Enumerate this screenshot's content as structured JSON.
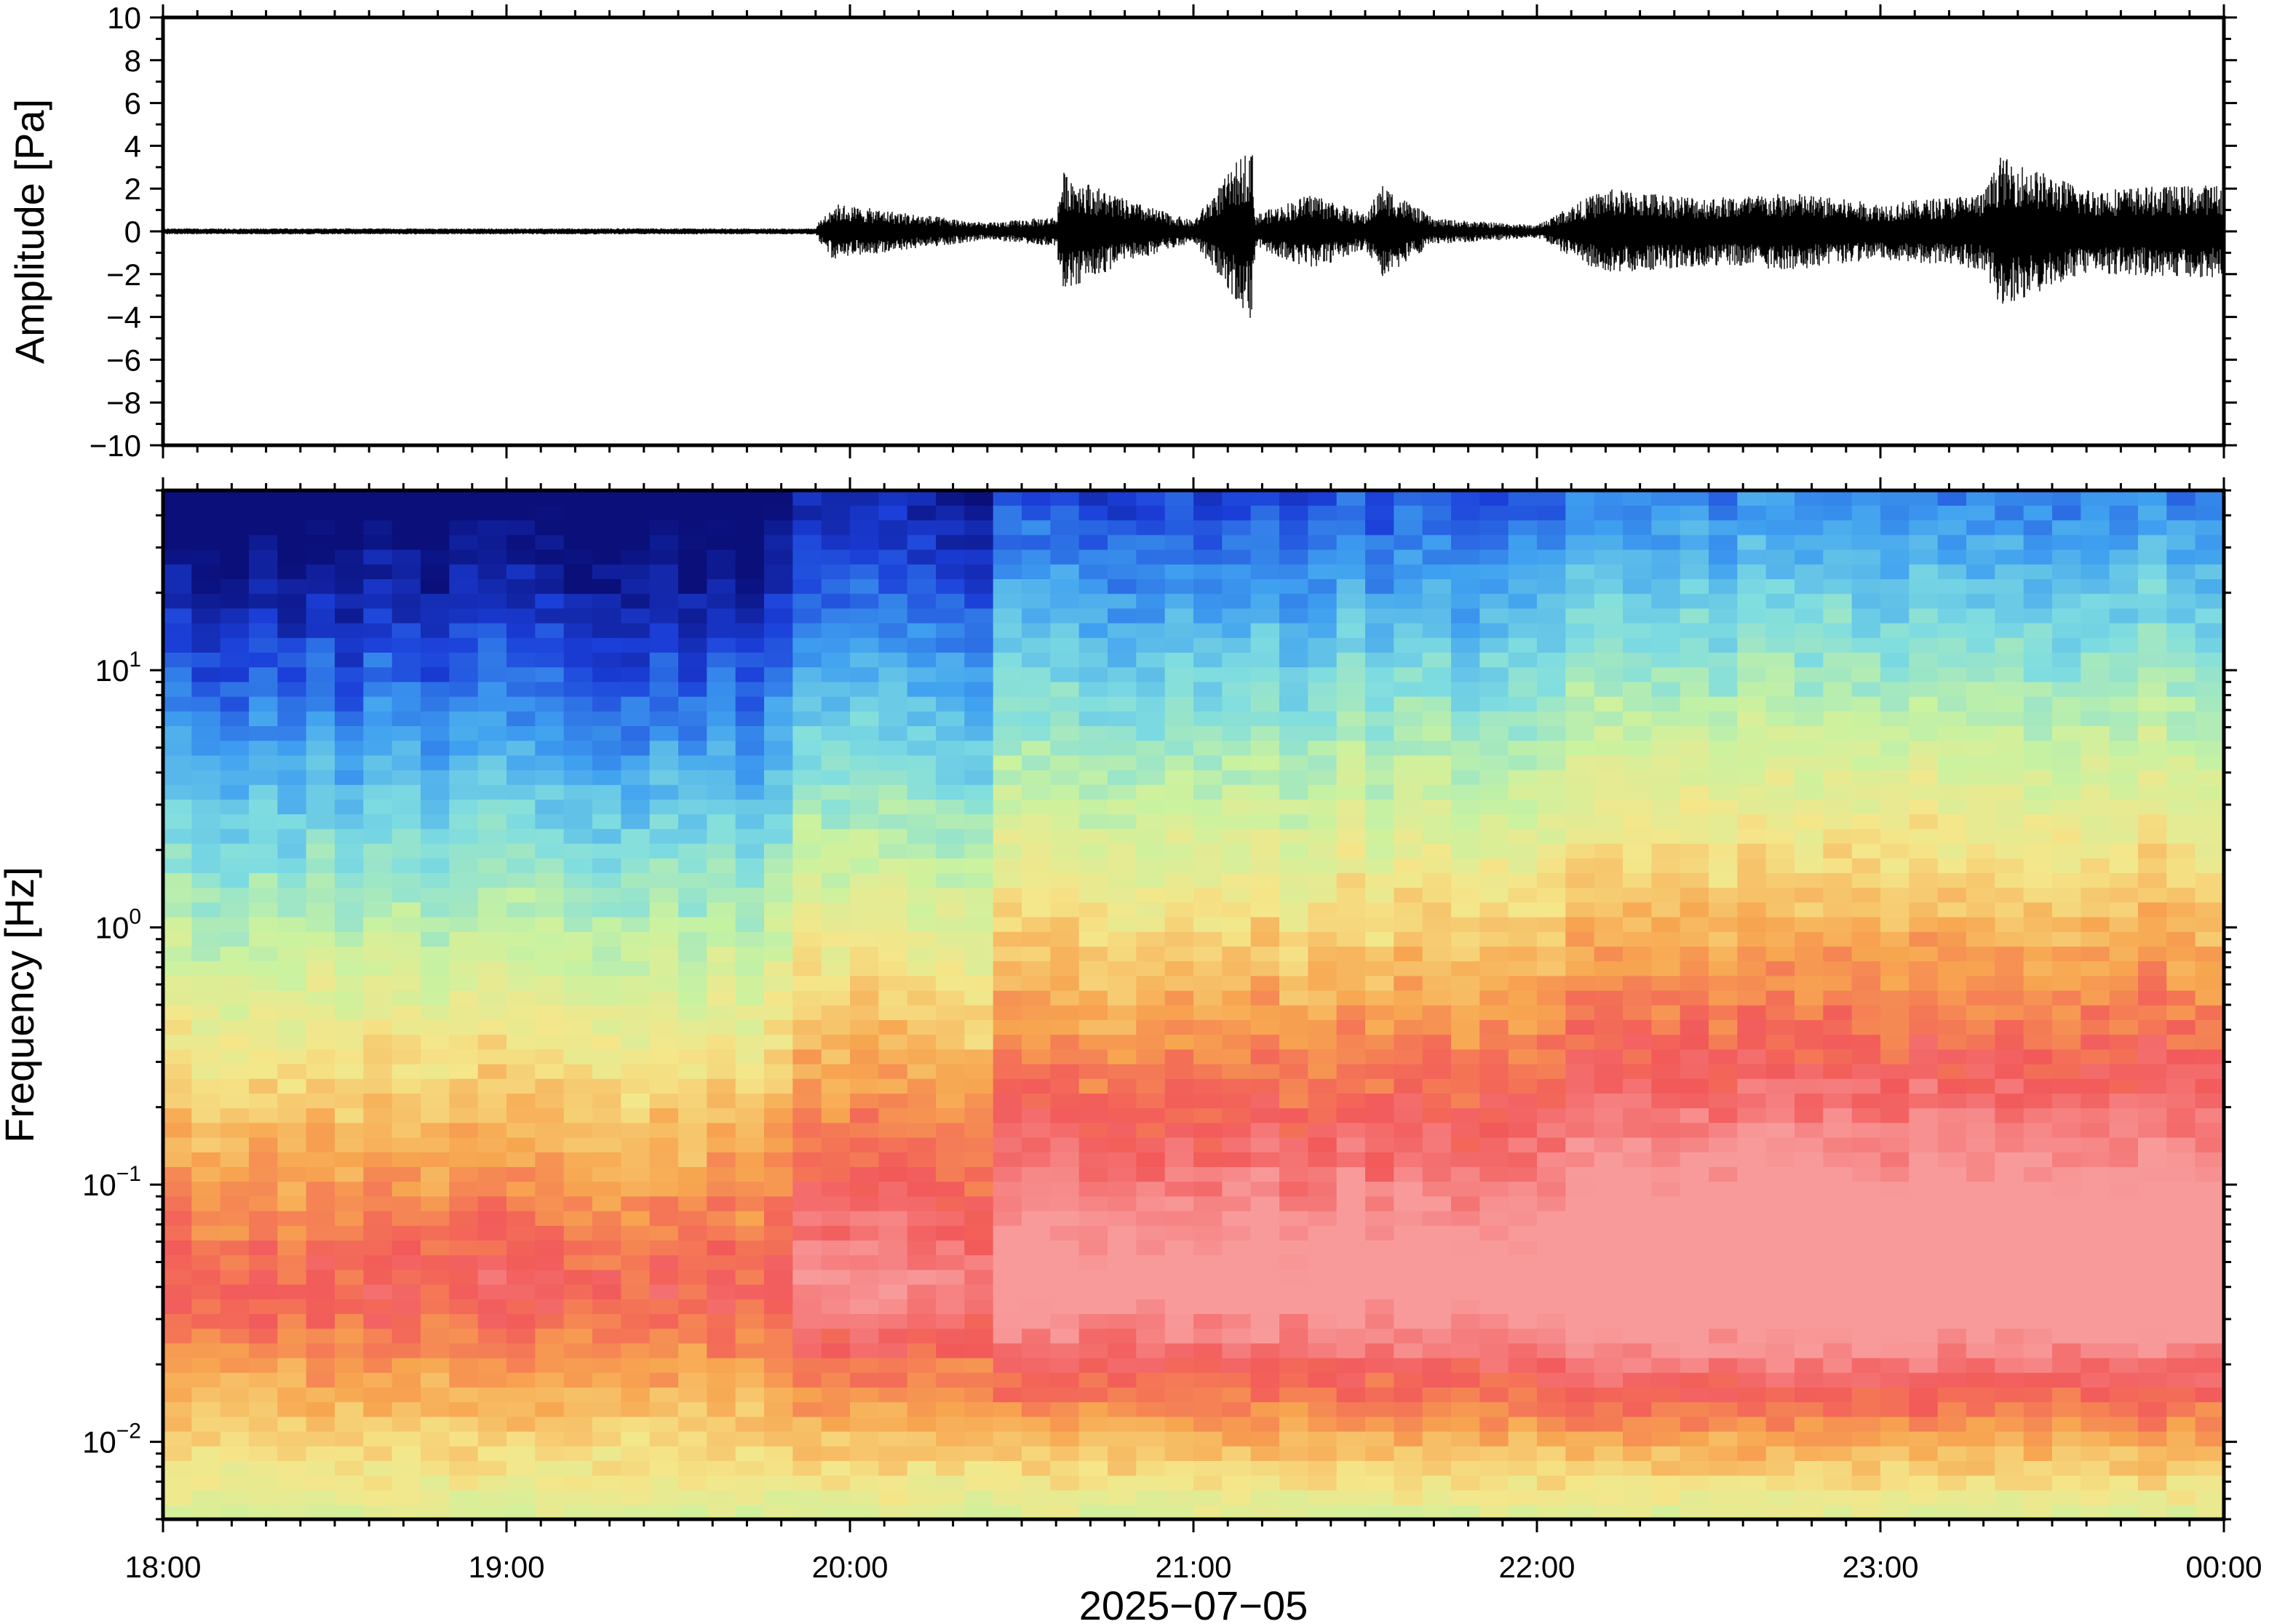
{
  "chart_data": [
    {
      "type": "line",
      "ylabel": "Amplitude [Pa]",
      "ylim": [
        -10,
        10
      ],
      "yticks": [
        10,
        8,
        6,
        4,
        2,
        0,
        -2,
        -4,
        -6,
        -8,
        -10
      ],
      "ytick_labels": [
        "10",
        "8",
        "6",
        "4",
        "2",
        "0",
        "−2",
        "−4",
        "−6",
        "−8",
        "−10"
      ],
      "x_range": [
        "18:00",
        "00:00"
      ],
      "x_hours": [
        18,
        24
      ],
      "envelope": {
        "hour": [
          18.0,
          19.0,
          19.9,
          19.95,
          20.4,
          20.6,
          20.62,
          20.8,
          21.0,
          21.17,
          21.18,
          21.35,
          21.5,
          21.55,
          21.7,
          22.0,
          22.1,
          22.2,
          22.5,
          22.75,
          23.0,
          23.3,
          23.35,
          23.6,
          24.0
        ],
        "amplitude": [
          0.2,
          0.2,
          0.25,
          1.3,
          0.4,
          0.7,
          2.8,
          1.5,
          0.5,
          4.2,
          0.8,
          1.8,
          0.8,
          2.2,
          0.6,
          0.3,
          1.2,
          2.0,
          1.6,
          1.8,
          1.3,
          1.8,
          3.5,
          2.0,
          2.2
        ]
      },
      "line_color": "#000000"
    },
    {
      "type": "heatmap",
      "ylabel": "Frequency [Hz]",
      "xlabel": "2025−07−05",
      "yscale": "log",
      "ylim": [
        0.005,
        50
      ],
      "yticks": [
        10,
        1,
        0.1,
        0.01
      ],
      "ytick_labels": [
        {
          "base": "10",
          "exp": "1"
        },
        {
          "base": "10",
          "exp": "0"
        },
        {
          "base": "10",
          "exp": "−1"
        },
        {
          "base": "10",
          "exp": "−2"
        }
      ],
      "x_categories": [
        "18:00",
        "19:00",
        "20:00",
        "21:00",
        "22:00",
        "23:00",
        "00:00"
      ],
      "x_hours": [
        18,
        24
      ],
      "colormap": [
        "#0a0f7a",
        "#1b3fd9",
        "#3fa0f0",
        "#7fdde0",
        "#c9f2a0",
        "#f5e68a",
        "#f7a650",
        "#f25a5a",
        "#f89a9a"
      ],
      "segments": [
        {
          "start": 18.0,
          "end": 19.8,
          "level": 0.3
        },
        {
          "start": 19.8,
          "end": 20.45,
          "level": 0.5
        },
        {
          "start": 20.45,
          "end": 22.12,
          "level": 0.7
        },
        {
          "start": 22.12,
          "end": 24.0,
          "level": 0.85
        }
      ]
    }
  ]
}
